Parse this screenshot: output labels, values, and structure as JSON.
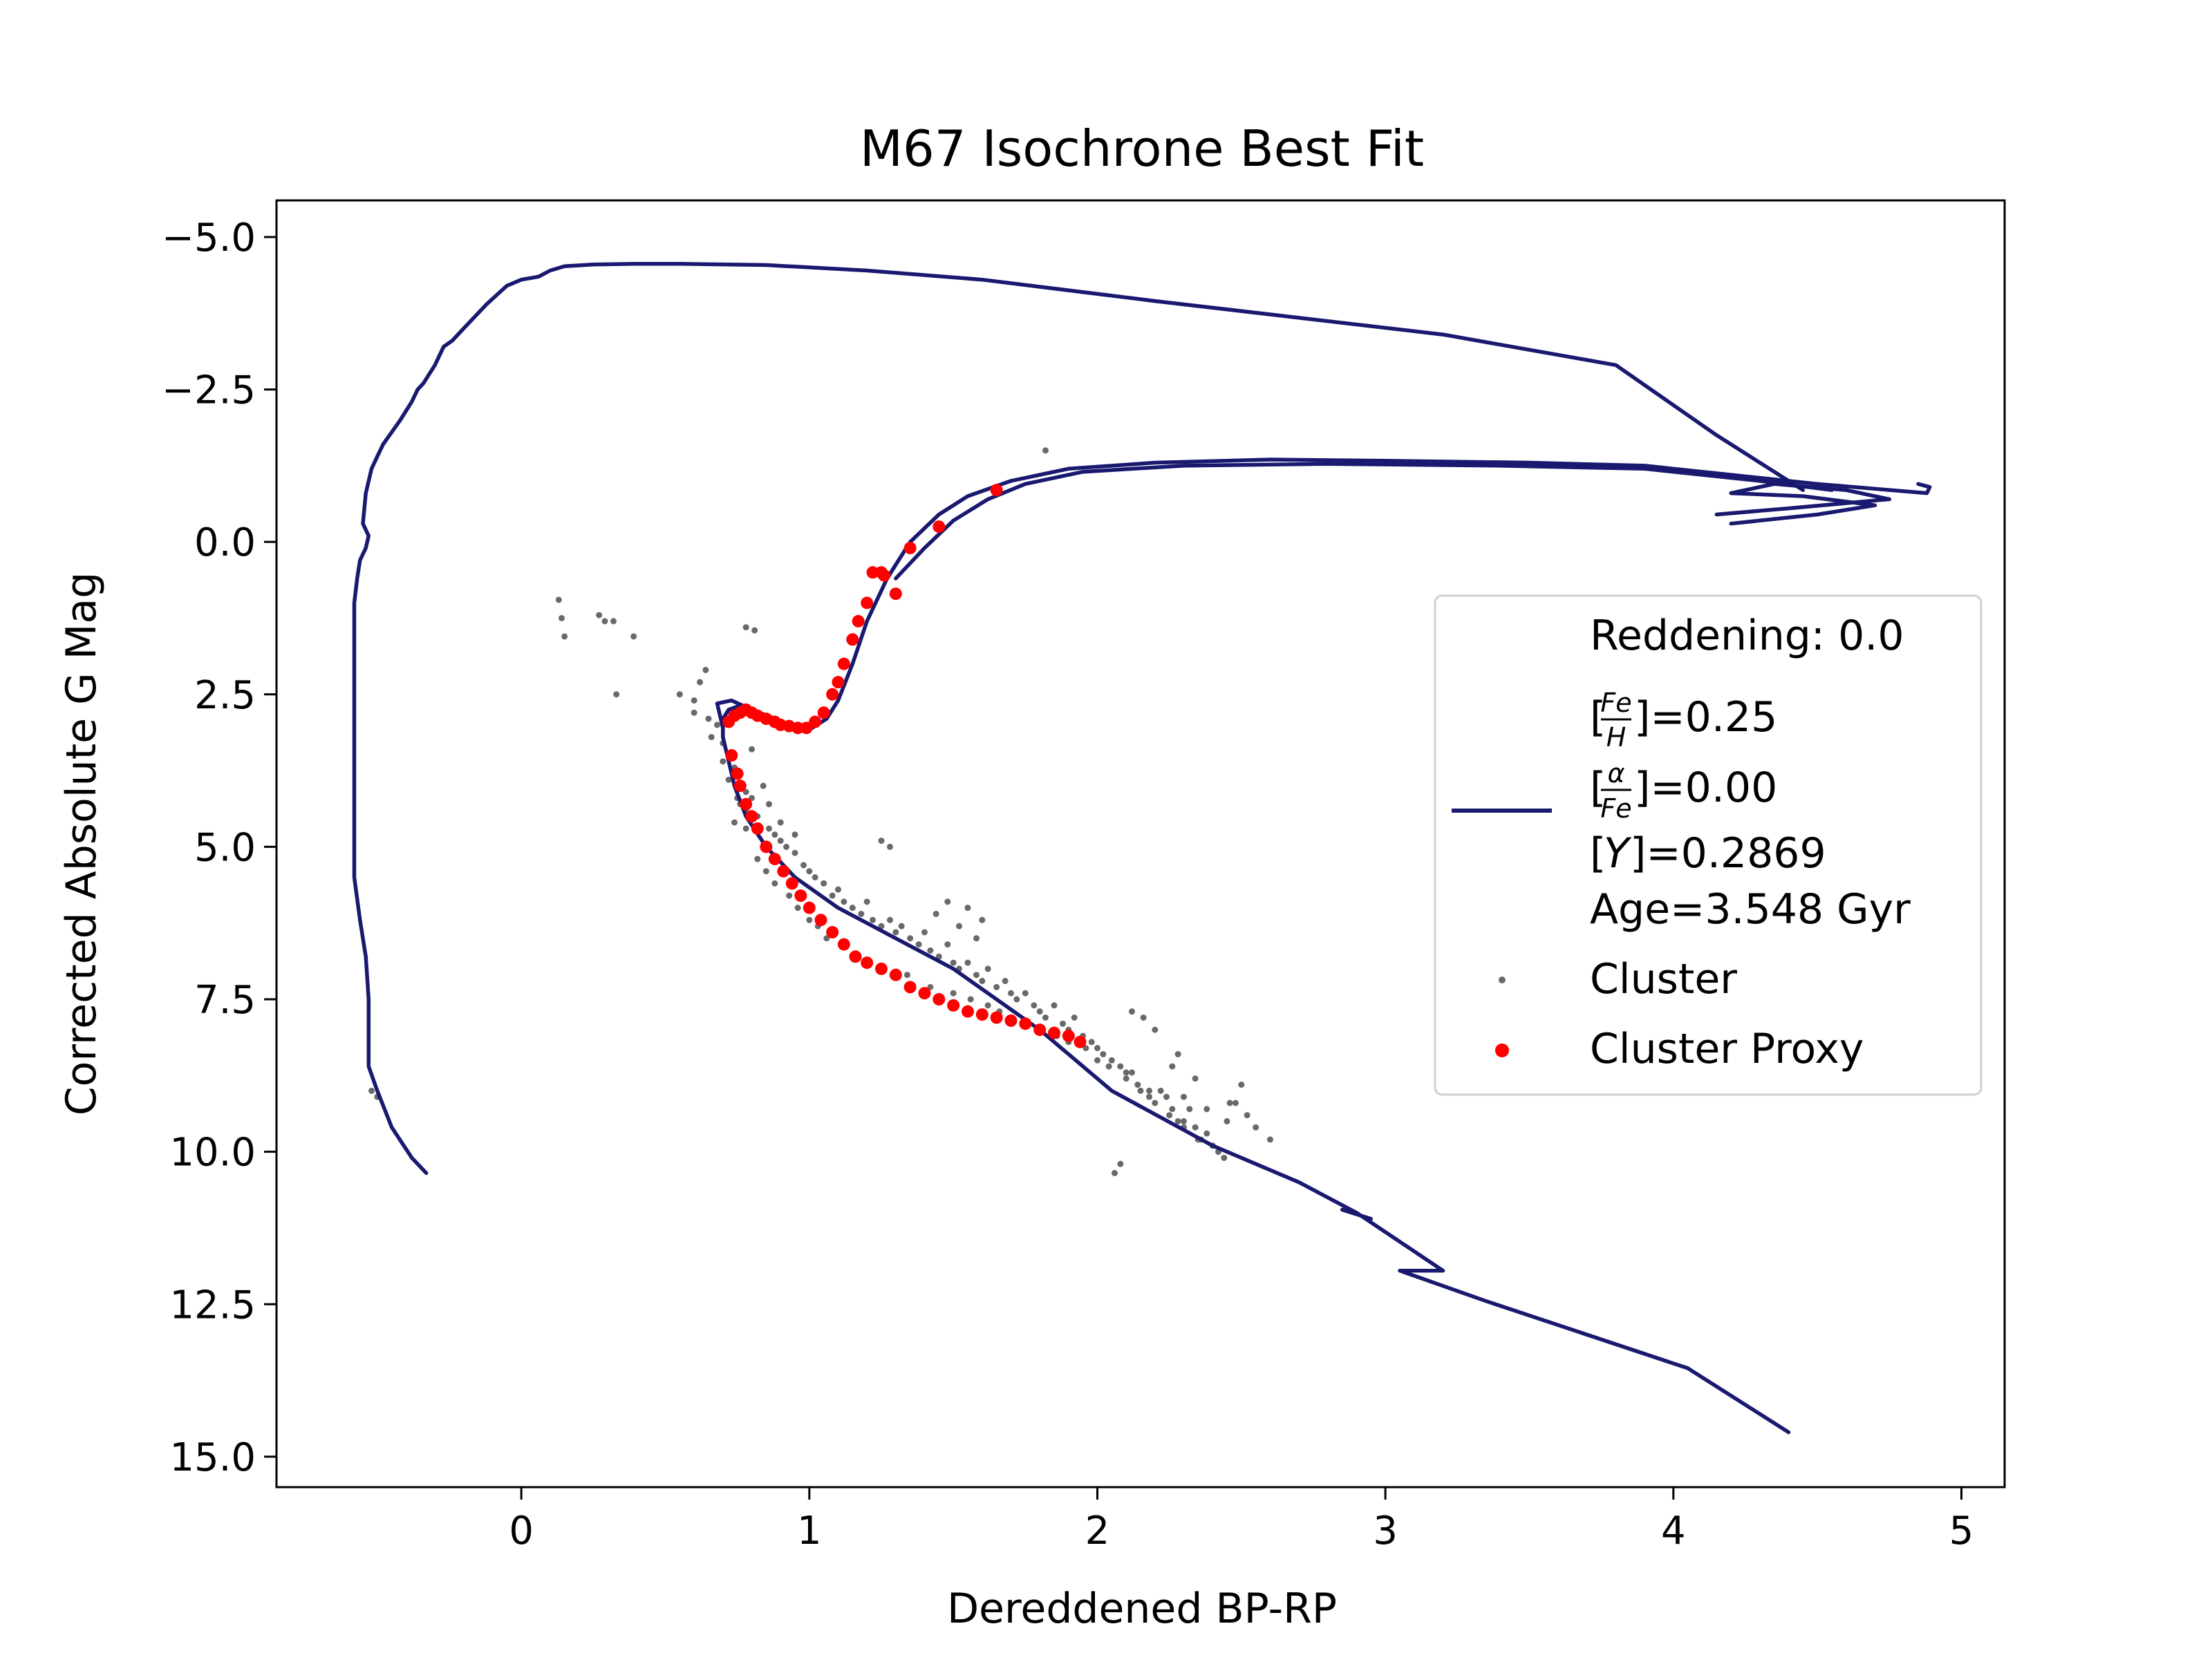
{
  "chart_data": {
    "type": "scatter",
    "title": "M67 Isochrone Best Fit",
    "xlabel": "Dereddened BP-RP",
    "ylabel": "Corrected Absolute G Mag",
    "xlim": [
      -0.85,
      5.15
    ],
    "ylim": [
      15.5,
      -5.6
    ],
    "y_inverted": true,
    "x_ticks": [
      0,
      1,
      2,
      3,
      4,
      5
    ],
    "x_tick_labels": [
      "0",
      "1",
      "2",
      "3",
      "4",
      "5"
    ],
    "y_ticks": [
      -5.0,
      -2.5,
      0.0,
      2.5,
      5.0,
      7.5,
      10.0,
      12.5,
      15.0
    ],
    "y_tick_labels": [
      "−5.0",
      "−2.5",
      "0.0",
      "2.5",
      "5.0",
      "7.5",
      "10.0",
      "12.5",
      "15.0"
    ],
    "grid": false,
    "legend_position": "center-right",
    "legend": {
      "header": "Reddening: 0.0",
      "isochrone_lines": {
        "feh_label": "]=0.25",
        "feh_num": "Fe",
        "feh_den": "H",
        "alpha_label": "]=0.00",
        "alpha_num": "α",
        "alpha_den": "Fe",
        "y_label": "]=0.2869",
        "y_symbol": "Y",
        "age_label": "Age=3.548 Gyr"
      },
      "cluster_label": "Cluster",
      "proxy_label": "Cluster Proxy"
    },
    "colors": {
      "isochrone": "#191970",
      "cluster": "#696969",
      "proxy": "#ff0000"
    },
    "isochrone_segments": [
      {
        "name": "left-branch",
        "x": [
          -0.33,
          -0.38,
          -0.45,
          -0.5,
          -0.53,
          -0.53,
          -0.53,
          -0.54,
          -0.56,
          -0.58,
          -0.58,
          -0.58,
          -0.58,
          -0.58,
          -0.58,
          -0.57,
          -0.56,
          -0.54,
          -0.53,
          -0.55,
          -0.54,
          -0.52,
          -0.5,
          -0.48,
          -0.45,
          -0.42,
          -0.38,
          -0.36,
          -0.34,
          -0.3,
          -0.27,
          -0.24,
          -0.2,
          -0.12,
          -0.05,
          0.0,
          0.06,
          0.1,
          0.15,
          0.25,
          0.4,
          0.55,
          0.85,
          1.2,
          1.6,
          2.2,
          3.2,
          3.8,
          4.15,
          4.35,
          4.45
        ],
        "y": [
          10.35,
          10.1,
          9.6,
          9.0,
          8.6,
          8.2,
          7.5,
          6.8,
          6.2,
          5.5,
          4.5,
          3.5,
          2.5,
          1.5,
          1.0,
          0.6,
          0.3,
          0.1,
          -0.1,
          -0.3,
          -0.8,
          -1.2,
          -1.4,
          -1.6,
          -1.8,
          -2.0,
          -2.3,
          -2.5,
          -2.6,
          -2.9,
          -3.2,
          -3.3,
          -3.5,
          -3.9,
          -4.2,
          -4.3,
          -4.35,
          -4.45,
          -4.52,
          -4.55,
          -4.56,
          -4.56,
          -4.54,
          -4.45,
          -4.3,
          -3.95,
          -3.4,
          -2.9,
          -1.75,
          -1.15,
          -0.85
        ]
      },
      {
        "name": "lower-ms",
        "x": [
          4.4,
          4.05,
          3.35,
          3.05,
          3.2,
          2.9,
          2.7,
          2.4,
          2.05,
          1.8,
          1.5,
          1.3,
          1.1,
          0.95,
          0.85,
          0.78,
          0.74,
          0.72,
          0.7,
          0.7,
          0.72,
          0.75
        ],
        "y": [
          14.6,
          13.55,
          12.45,
          11.95,
          11.95,
          11.0,
          10.5,
          9.9,
          9.0,
          8.0,
          7.0,
          6.5,
          6.0,
          5.5,
          5.0,
          4.5,
          4.0,
          3.6,
          3.2,
          2.9,
          2.75,
          2.7
        ]
      },
      {
        "name": "turnoff-subgiant",
        "x": [
          0.7,
          0.68,
          0.73,
          0.8,
          0.88,
          0.93,
          0.97,
          1.01,
          1.06,
          1.1,
          1.15,
          1.2,
          1.27,
          1.35,
          1.45,
          1.55,
          1.7,
          1.9,
          2.2,
          2.6,
          3.0,
          3.5,
          3.9,
          4.2,
          4.5,
          4.88,
          4.89,
          4.85
        ],
        "y": [
          3.05,
          2.65,
          2.6,
          2.75,
          2.9,
          3.0,
          3.07,
          3.05,
          2.9,
          2.6,
          2.0,
          1.3,
          0.6,
          0.0,
          -0.45,
          -0.75,
          -1.0,
          -1.2,
          -1.3,
          -1.35,
          -1.33,
          -1.3,
          -1.25,
          -1.1,
          -0.95,
          -0.8,
          -0.9,
          -0.95
        ]
      },
      {
        "name": "rgb-secondary",
        "x": [
          1.3,
          1.4,
          1.5,
          1.62,
          1.75,
          1.95,
          2.3,
          2.8,
          3.4,
          3.9,
          4.3,
          4.55
        ],
        "y": [
          0.6,
          0.1,
          -0.35,
          -0.7,
          -0.95,
          -1.15,
          -1.25,
          -1.28,
          -1.25,
          -1.2,
          -1.0,
          -0.85
        ]
      },
      {
        "name": "rc-loop",
        "x": [
          4.2,
          4.5,
          4.7,
          4.45,
          4.2,
          4.35,
          4.6,
          4.75,
          4.4,
          4.15
        ],
        "y": [
          -0.3,
          -0.45,
          -0.6,
          -0.75,
          -0.8,
          -0.95,
          -0.85,
          -0.7,
          -0.55,
          -0.45
        ]
      },
      {
        "name": "bottom-kink",
        "x": [
          2.85,
          2.95
        ],
        "y": [
          10.95,
          11.1
        ]
      }
    ],
    "cluster": {
      "x": [
        0.13,
        0.15,
        0.27,
        0.32,
        0.39,
        0.33,
        0.14,
        0.29,
        1.82,
        -0.52,
        -0.5,
        0.6,
        0.65,
        0.66,
        0.7,
        0.72,
        0.74,
        0.76,
        0.8,
        0.78,
        0.82,
        0.86,
        0.88,
        0.9,
        0.92,
        0.95,
        0.98,
        1.0,
        1.02,
        1.05,
        1.08,
        1.1,
        1.12,
        1.15,
        1.18,
        1.2,
        1.22,
        1.25,
        1.28,
        1.3,
        1.32,
        1.35,
        1.38,
        1.4,
        1.42,
        1.45,
        1.48,
        1.5,
        1.52,
        1.55,
        1.58,
        1.6,
        1.62,
        1.65,
        1.68,
        1.7,
        1.72,
        1.75,
        1.78,
        1.8,
        1.82,
        1.85,
        1.88,
        1.9,
        1.92,
        1.95,
        1.98,
        2.0,
        2.02,
        2.05,
        2.08,
        2.1,
        2.12,
        2.15,
        2.18,
        2.2,
        2.22,
        2.25,
        2.28,
        2.3,
        2.32,
        2.35,
        2.38,
        2.4,
        2.42,
        2.45,
        2.48,
        2.52,
        2.55,
        2.6,
        2.08,
        2.06,
        0.74,
        0.76,
        0.78,
        0.72,
        0.7,
        0.68,
        0.8,
        0.84,
        0.86,
        0.9,
        0.95,
        1.25,
        1.28,
        0.55,
        0.6,
        0.62,
        0.64,
        0.78,
        0.81,
        1.6,
        1.55,
        1.48,
        1.44,
        1.52,
        1.58,
        0.74,
        0.75,
        0.78,
        0.82,
        0.85,
        0.88,
        0.93,
        0.96,
        1.0,
        1.03,
        1.06,
        1.12,
        1.16,
        1.2,
        1.26,
        1.34,
        1.42,
        1.5,
        1.56,
        1.62,
        1.66,
        1.7,
        1.74,
        1.8,
        1.86,
        1.9,
        1.96,
        2.0,
        2.04,
        2.1,
        2.14,
        2.18,
        2.24,
        2.26,
        2.3,
        2.34,
        2.36,
        2.4,
        2.44,
        2.28,
        2.2,
        2.16,
        2.12,
        2.34,
        2.38,
        2.46,
        2.5,
        2.26,
        2.3
      ],
      "y": [
        0.95,
        1.55,
        1.2,
        1.3,
        1.55,
        2.5,
        1.25,
        1.3,
        -1.5,
        9.0,
        9.1,
        2.8,
        2.9,
        3.2,
        3.3,
        3.5,
        3.8,
        4.0,
        4.2,
        4.4,
        4.5,
        4.7,
        4.8,
        4.9,
        5.0,
        5.1,
        5.3,
        5.4,
        5.5,
        5.6,
        5.8,
        5.7,
        5.9,
        6.0,
        6.1,
        5.9,
        6.2,
        6.3,
        6.2,
        6.4,
        6.3,
        6.5,
        6.6,
        6.4,
        6.7,
        6.8,
        6.6,
        6.9,
        7.0,
        6.9,
        7.1,
        7.2,
        7.0,
        7.3,
        7.2,
        7.4,
        7.5,
        7.4,
        7.6,
        7.7,
        7.8,
        7.6,
        7.9,
        8.0,
        7.8,
        8.1,
        8.2,
        8.3,
        8.4,
        8.5,
        8.6,
        8.8,
        8.7,
        9.0,
        9.1,
        9.2,
        9.0,
        9.4,
        9.5,
        9.6,
        9.3,
        9.8,
        9.7,
        9.9,
        10.0,
        9.5,
        9.2,
        9.4,
        9.6,
        9.8,
        10.2,
        10.35,
        4.6,
        4.3,
        4.1,
        3.9,
        3.6,
        3.0,
        3.4,
        4.0,
        4.3,
        4.6,
        4.8,
        4.9,
        5.0,
        2.5,
        2.6,
        2.3,
        2.1,
        1.4,
        1.45,
        6.2,
        6.0,
        5.9,
        6.1,
        6.3,
        6.5,
        3.7,
        4.2,
        4.7,
        5.2,
        5.4,
        5.6,
        5.8,
        6.0,
        6.2,
        6.3,
        6.5,
        6.6,
        6.8,
        6.9,
        7.0,
        7.1,
        7.3,
        7.4,
        7.5,
        7.6,
        7.7,
        7.8,
        7.9,
        8.0,
        8.1,
        8.2,
        8.3,
        8.5,
        8.6,
        8.7,
        8.9,
        9.0,
        9.1,
        9.3,
        9.5,
        9.6,
        9.8,
        9.9,
        10.1,
        8.4,
        8.0,
        7.8,
        7.7,
        8.8,
        9.3,
        9.2,
        8.9,
        8.6,
        9.1
      ]
    },
    "proxy": {
      "x": [
        0.72,
        0.74,
        0.76,
        0.78,
        0.8,
        0.82,
        0.85,
        0.88,
        0.9,
        0.93,
        0.96,
        0.99,
        1.02,
        1.05,
        1.08,
        1.1,
        1.12,
        1.15,
        1.17,
        1.2,
        1.22,
        1.25,
        1.26,
        1.3,
        1.35,
        1.45,
        1.65,
        0.73,
        0.75,
        0.76,
        0.78,
        0.8,
        0.82,
        0.85,
        0.88,
        0.91,
        0.94,
        0.97,
        1.0,
        1.04,
        1.08,
        1.12,
        1.16,
        1.2,
        1.25,
        1.3,
        1.35,
        1.4,
        1.45,
        1.5,
        1.55,
        1.6,
        1.65,
        1.7,
        1.75,
        1.8,
        1.85,
        1.9,
        1.94
      ],
      "y": [
        2.95,
        2.85,
        2.8,
        2.75,
        2.8,
        2.85,
        2.9,
        2.95,
        3.0,
        3.02,
        3.05,
        3.05,
        2.95,
        2.8,
        2.5,
        2.3,
        2.0,
        1.6,
        1.3,
        1.0,
        0.5,
        0.5,
        0.55,
        0.85,
        0.1,
        -0.25,
        -0.85,
        3.5,
        3.8,
        4.0,
        4.3,
        4.5,
        4.7,
        5.0,
        5.2,
        5.4,
        5.6,
        5.8,
        6.0,
        6.2,
        6.4,
        6.6,
        6.8,
        6.9,
        7.0,
        7.1,
        7.3,
        7.4,
        7.5,
        7.6,
        7.7,
        7.75,
        7.8,
        7.85,
        7.9,
        8.0,
        8.05,
        8.1,
        8.2
      ]
    }
  }
}
